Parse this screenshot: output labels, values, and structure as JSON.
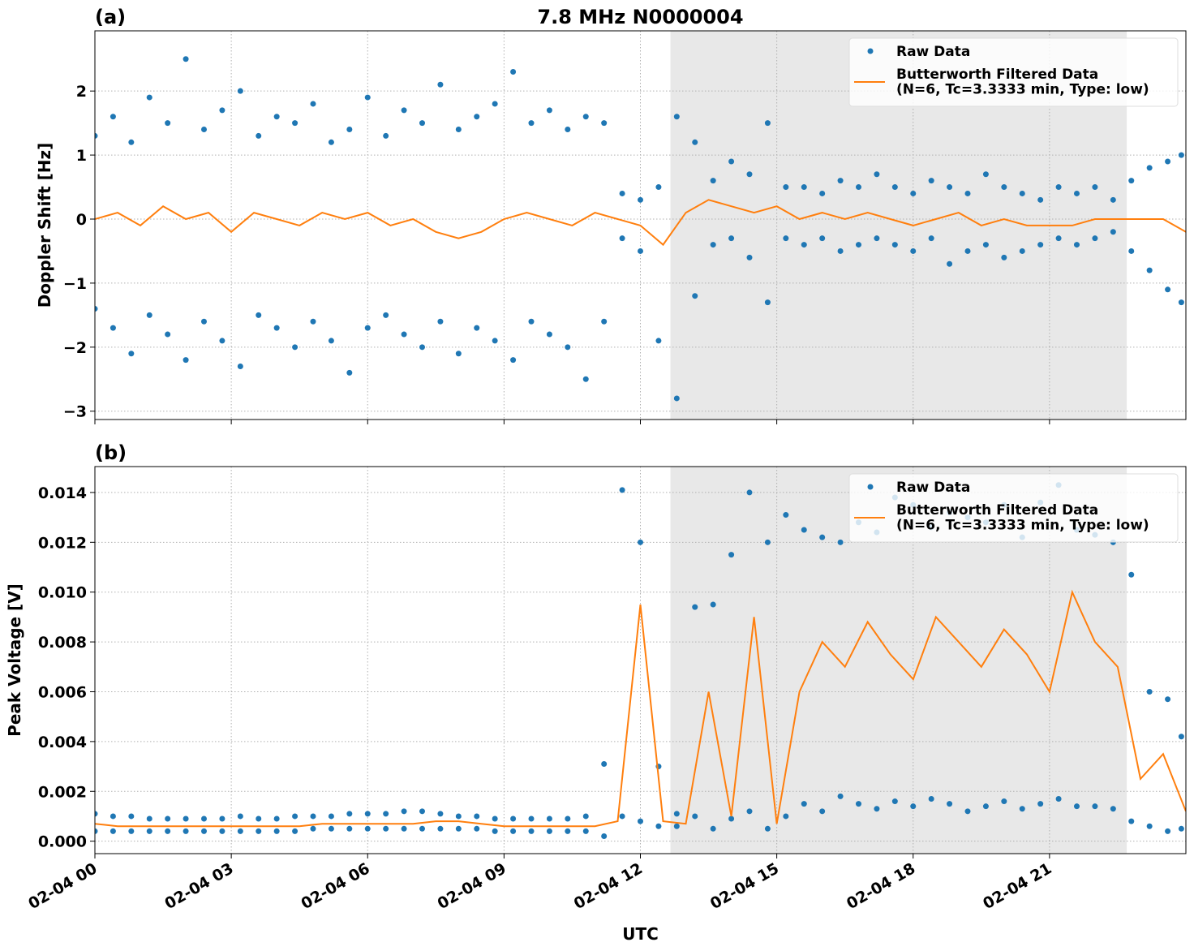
{
  "chart_data": [
    {
      "type": "scatter",
      "panel_label": "(a)",
      "title": "7.8 MHz N0000004",
      "ylabel": "Doppler Shift [Hz]",
      "xlim": [
        0,
        24
      ],
      "xticks": [
        0,
        3,
        6,
        9,
        12,
        15,
        18,
        21
      ],
      "ylim": [
        -3.13,
        2.94
      ],
      "yticks": [
        {
          "value": -3,
          "label": "−3"
        },
        {
          "value": -2,
          "label": "−2"
        },
        {
          "value": -1,
          "label": "−1"
        },
        0,
        1,
        2
      ],
      "grid": true,
      "legend": "upper right",
      "span": [
        12.66,
        22.7
      ],
      "span_color": "#e8e8e8",
      "series": [
        {
          "name": "Raw Data",
          "color": "#1f77b4",
          "mark": "dot",
          "x": [
            0,
            0.4,
            0.8,
            1.2,
            1.6,
            2,
            2.4,
            2.8,
            3.2,
            3.6,
            4,
            4.4,
            4.8,
            5.2,
            5.6,
            6,
            6.4,
            6.8,
            7.2,
            7.6,
            8,
            8.4,
            8.8,
            9.2,
            9.6,
            10,
            10.4,
            10.8,
            11.2,
            11.6,
            12,
            12.4,
            12.8,
            13.2,
            13.6,
            14,
            14.4,
            14.8,
            15.2,
            15.6,
            16,
            16.4,
            16.8,
            17.2,
            17.6,
            18,
            18.4,
            18.8,
            19.2,
            19.6,
            20,
            20.4,
            20.8,
            21.2,
            21.6,
            22,
            22.4,
            22.8,
            23.2,
            23.6,
            23.9,
            0,
            0.4,
            0.8,
            1.2,
            1.6,
            2,
            2.4,
            2.8,
            3.2,
            3.6,
            4,
            4.4,
            4.8,
            5.2,
            5.6,
            6,
            6.4,
            6.8,
            7.2,
            7.6,
            8,
            8.4,
            8.8,
            9.2,
            9.6,
            10,
            10.4,
            10.8,
            11.2,
            11.6,
            12,
            12.4,
            12.8,
            13.2,
            13.6,
            14,
            14.4,
            14.8,
            15.2,
            15.6,
            16,
            16.4,
            16.8,
            17.2,
            17.6,
            18,
            18.4,
            18.8,
            19.2,
            19.6,
            20,
            20.4,
            20.8,
            21.2,
            21.6,
            22,
            22.4,
            22.8,
            23.2,
            23.6,
            23.9
          ],
          "values": [
            1.3,
            1.6,
            1.2,
            1.9,
            1.5,
            2.5,
            1.4,
            1.7,
            2.0,
            1.3,
            1.6,
            1.5,
            1.8,
            1.2,
            1.4,
            1.9,
            1.3,
            1.7,
            1.5,
            2.1,
            1.4,
            1.6,
            1.8,
            2.3,
            1.5,
            1.7,
            1.4,
            1.6,
            1.5,
            0.4,
            0.3,
            0.5,
            1.6,
            1.2,
            0.6,
            0.9,
            0.7,
            1.5,
            0.5,
            0.5,
            0.4,
            0.6,
            0.5,
            0.7,
            0.5,
            0.4,
            0.6,
            0.5,
            0.4,
            0.7,
            0.5,
            0.4,
            0.3,
            0.5,
            0.4,
            0.5,
            0.3,
            0.6,
            0.8,
            0.9,
            1.0,
            -1.4,
            -1.7,
            -2.1,
            -1.5,
            -1.8,
            -2.2,
            -1.6,
            -1.9,
            -2.3,
            -1.5,
            -1.7,
            -2.0,
            -1.6,
            -1.9,
            -2.4,
            -1.7,
            -1.5,
            -1.8,
            -2.0,
            -1.6,
            -2.1,
            -1.7,
            -1.9,
            -2.2,
            -1.6,
            -1.8,
            -2.0,
            -2.5,
            -1.6,
            -0.3,
            -0.5,
            -1.9,
            -2.8,
            -1.2,
            -0.4,
            -0.3,
            -0.6,
            -1.3,
            -0.3,
            -0.4,
            -0.3,
            -0.5,
            -0.4,
            -0.3,
            -0.4,
            -0.5,
            -0.3,
            -0.7,
            -0.5,
            -0.4,
            -0.6,
            -0.5,
            -0.4,
            -0.3,
            -0.4,
            -0.3,
            -0.2,
            -0.5,
            -0.8,
            -1.1,
            -1.3
          ]
        },
        {
          "name": "Butterworth Filtered Data\n(N=6, Tc=3.3333 min, Type: low)",
          "color": "#ff7f0e",
          "mark": "line",
          "x": [
            0,
            0.5,
            1,
            1.5,
            2,
            2.5,
            3,
            3.5,
            4,
            4.5,
            5,
            5.5,
            6,
            6.5,
            7,
            7.5,
            8,
            8.5,
            9,
            9.5,
            10,
            10.5,
            11,
            11.5,
            12,
            12.5,
            13,
            13.5,
            14,
            14.5,
            15,
            15.5,
            16,
            16.5,
            17,
            17.5,
            18,
            18.5,
            19,
            19.5,
            20,
            20.5,
            21,
            21.5,
            22,
            22.5,
            23,
            23.5,
            24
          ],
          "values": [
            0,
            0.1,
            -0.1,
            0.2,
            0.0,
            0.1,
            -0.2,
            0.1,
            0.0,
            -0.1,
            0.1,
            0.0,
            0.1,
            -0.1,
            0.0,
            -0.2,
            -0.3,
            -0.2,
            0.0,
            0.1,
            0.0,
            -0.1,
            0.1,
            0.0,
            -0.1,
            -0.4,
            0.1,
            0.3,
            0.2,
            0.1,
            0.2,
            0.0,
            0.1,
            0.0,
            0.1,
            0.0,
            -0.1,
            0.0,
            0.1,
            -0.1,
            0.0,
            -0.1,
            -0.1,
            -0.1,
            0.0,
            0.0,
            0.0,
            0.0,
            -0.2
          ]
        }
      ]
    },
    {
      "type": "scatter",
      "panel_label": "(b)",
      "ylabel": "Peak Voltage [V]",
      "xlabel": "UTC",
      "xlim": [
        0,
        24
      ],
      "xticks": [
        {
          "value": 0,
          "label": "02-04 00"
        },
        {
          "value": 3,
          "label": "02-04 03"
        },
        {
          "value": 6,
          "label": "02-04 06"
        },
        {
          "value": 9,
          "label": "02-04 09"
        },
        {
          "value": 12,
          "label": "02-04 12"
        },
        {
          "value": 15,
          "label": "02-04 15"
        },
        {
          "value": 18,
          "label": "02-04 18"
        },
        {
          "value": 21,
          "label": "02-04 21"
        }
      ],
      "ylim": [
        -0.0005,
        0.01504
      ],
      "yticks": [
        {
          "value": 0,
          "label": "0.000"
        },
        {
          "value": 0.002,
          "label": "0.002"
        },
        {
          "value": 0.004,
          "label": "0.004"
        },
        {
          "value": 0.006,
          "label": "0.006"
        },
        {
          "value": 0.008,
          "label": "0.008"
        },
        {
          "value": 0.01,
          "label": "0.010"
        },
        {
          "value": 0.012,
          "label": "0.012"
        },
        {
          "value": 0.014,
          "label": "0.014"
        }
      ],
      "grid": true,
      "legend": "upper right",
      "span": [
        12.66,
        22.7
      ],
      "span_color": "#e8e8e8",
      "series": [
        {
          "name": "Raw Data",
          "color": "#1f77b4",
          "mark": "dot",
          "x": [
            0,
            0.4,
            0.8,
            1.2,
            1.6,
            2,
            2.4,
            2.8,
            3.2,
            3.6,
            4,
            4.4,
            4.8,
            5.2,
            5.6,
            6,
            6.4,
            6.8,
            7.2,
            7.6,
            8,
            8.4,
            8.8,
            9.2,
            9.6,
            10,
            10.4,
            10.8,
            11.2,
            11.6,
            12,
            12.4,
            12.8,
            13.2,
            13.6,
            14,
            14.4,
            14.8,
            15.2,
            15.6,
            16,
            16.4,
            16.8,
            17.2,
            17.6,
            18,
            18.4,
            18.8,
            19.2,
            19.6,
            20,
            20.4,
            20.8,
            21.2,
            21.6,
            22,
            22.4,
            22.8,
            23.2,
            23.6,
            23.9,
            0,
            0.4,
            0.8,
            1.2,
            1.6,
            2,
            2.4,
            2.8,
            3.2,
            3.6,
            4,
            4.4,
            4.8,
            5.2,
            5.6,
            6,
            6.4,
            6.8,
            7.2,
            7.6,
            8,
            8.4,
            8.8,
            9.2,
            9.6,
            10,
            10.4,
            10.8,
            11.2,
            11.6,
            12,
            12.4,
            12.8,
            13.2,
            13.6,
            14,
            14.4,
            14.8,
            15.2,
            15.6,
            16,
            16.4,
            16.8,
            17.2,
            17.6,
            18,
            18.4,
            18.8,
            19.2,
            19.6,
            20,
            20.4,
            20.8,
            21.2,
            21.6,
            22,
            22.4,
            22.8,
            23.2,
            23.6,
            23.9
          ],
          "values": [
            0.0011,
            0.001,
            0.001,
            0.0009,
            0.0009,
            0.0009,
            0.0009,
            0.0009,
            0.001,
            0.0009,
            0.0009,
            0.001,
            0.001,
            0.001,
            0.0011,
            0.0011,
            0.0011,
            0.0012,
            0.0012,
            0.0011,
            0.001,
            0.001,
            0.0009,
            0.0009,
            0.0009,
            0.0009,
            0.0009,
            0.001,
            0.0031,
            0.0141,
            0.012,
            0.003,
            0.0011,
            0.0094,
            0.0095,
            0.0115,
            0.014,
            0.012,
            0.0131,
            0.0125,
            0.0122,
            0.012,
            0.0128,
            0.0124,
            0.0138,
            0.0135,
            0.0126,
            0.0132,
            0.013,
            0.0128,
            0.0135,
            0.0122,
            0.0136,
            0.0143,
            0.0125,
            0.0123,
            0.012,
            0.0107,
            0.006,
            0.0057,
            0.0042,
            0.0004,
            0.0004,
            0.0004,
            0.0004,
            0.0004,
            0.0004,
            0.0004,
            0.0004,
            0.0004,
            0.0004,
            0.0004,
            0.0004,
            0.0005,
            0.0005,
            0.0005,
            0.0005,
            0.0005,
            0.0005,
            0.0005,
            0.0005,
            0.0005,
            0.0005,
            0.0004,
            0.0004,
            0.0004,
            0.0004,
            0.0004,
            0.0004,
            0.0002,
            0.001,
            0.0008,
            0.0006,
            0.0006,
            0.001,
            0.0005,
            0.0009,
            0.0012,
            0.0005,
            0.001,
            0.0015,
            0.0012,
            0.0018,
            0.0015,
            0.0013,
            0.0016,
            0.0014,
            0.0017,
            0.0015,
            0.0012,
            0.0014,
            0.0016,
            0.0013,
            0.0015,
            0.0017,
            0.0014,
            0.0014,
            0.0013,
            0.0008,
            0.0006,
            0.0004,
            0.0005
          ]
        },
        {
          "name": "Butterworth Filtered Data\n(N=6, Tc=3.3333 min, Type: low)",
          "color": "#ff7f0e",
          "mark": "line",
          "x": [
            0,
            0.5,
            1,
            1.5,
            2,
            2.5,
            3,
            3.5,
            4,
            4.5,
            5,
            5.5,
            6,
            6.5,
            7,
            7.5,
            8,
            8.5,
            9,
            9.5,
            10,
            10.5,
            11,
            11.5,
            12,
            12.5,
            13,
            13.5,
            14,
            14.5,
            15,
            15.5,
            16,
            16.5,
            17,
            17.5,
            18,
            18.5,
            19,
            19.5,
            20,
            20.5,
            21,
            21.5,
            22,
            22.5,
            23,
            23.5,
            24
          ],
          "values": [
            0.0007,
            0.0006,
            0.0006,
            0.0006,
            0.0006,
            0.0006,
            0.0006,
            0.0006,
            0.0006,
            0.0006,
            0.0007,
            0.0007,
            0.0007,
            0.0007,
            0.0007,
            0.0008,
            0.0008,
            0.0007,
            0.0006,
            0.0006,
            0.0006,
            0.0006,
            0.0006,
            0.0008,
            0.0095,
            0.0008,
            0.0007,
            0.006,
            0.001,
            0.009,
            0.0007,
            0.006,
            0.008,
            0.007,
            0.0088,
            0.0075,
            0.0065,
            0.009,
            0.008,
            0.007,
            0.0085,
            0.0075,
            0.006,
            0.01,
            0.008,
            0.007,
            0.0025,
            0.0035,
            0.0012
          ]
        }
      ]
    }
  ]
}
